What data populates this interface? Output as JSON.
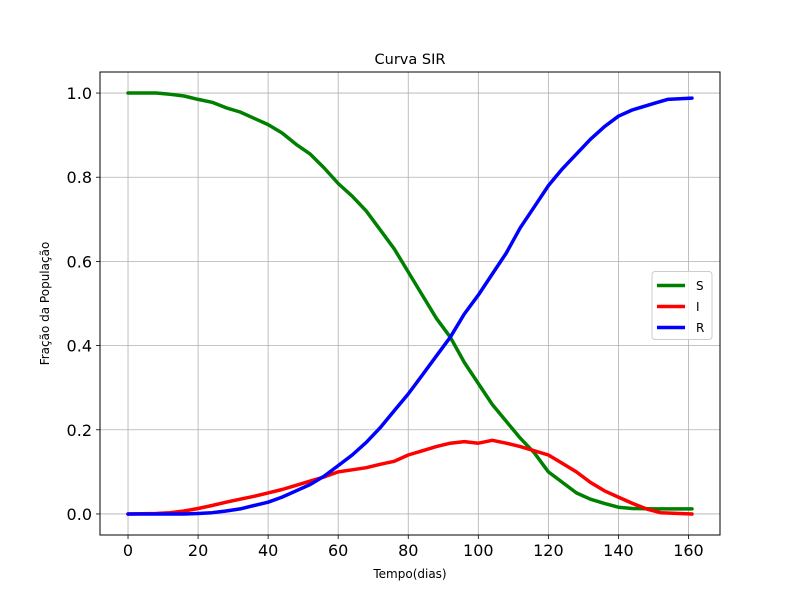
{
  "chart_data": {
    "type": "line",
    "title": "Curva SIR",
    "xlabel": "Tempo(dias)",
    "ylabel": "Fração da População",
    "xlim": [
      -8,
      169
    ],
    "ylim": [
      -0.05,
      1.05
    ],
    "xticks": [
      0,
      20,
      40,
      60,
      80,
      100,
      120,
      140,
      160
    ],
    "yticks": [
      0.0,
      0.2,
      0.4,
      0.6,
      0.8,
      1.0
    ],
    "xtick_labels": [
      "0",
      "20",
      "40",
      "60",
      "80",
      "100",
      "120",
      "140",
      "160"
    ],
    "ytick_labels": [
      "0.0",
      "0.2",
      "0.4",
      "0.6",
      "0.8",
      "1.0"
    ],
    "grid": true,
    "legend_position": "center-right",
    "series": [
      {
        "name": "S",
        "color": "#008000",
        "x": [
          0,
          8,
          12,
          16,
          20,
          24,
          28,
          32,
          36,
          40,
          44,
          48,
          52,
          56,
          60,
          64,
          68,
          72,
          76,
          80,
          84,
          88,
          92,
          96,
          100,
          104,
          108,
          112,
          116,
          120,
          124,
          128,
          132,
          136,
          140,
          144,
          150,
          161
        ],
        "values": [
          1.0,
          1.0,
          0.997,
          0.993,
          0.985,
          0.978,
          0.965,
          0.955,
          0.94,
          0.925,
          0.905,
          0.878,
          0.855,
          0.822,
          0.785,
          0.755,
          0.72,
          0.675,
          0.63,
          0.575,
          0.52,
          0.465,
          0.42,
          0.36,
          0.31,
          0.26,
          0.22,
          0.18,
          0.145,
          0.1,
          0.075,
          0.05,
          0.035,
          0.025,
          0.016,
          0.013,
          0.012,
          0.012
        ]
      },
      {
        "name": "I",
        "color": "#ff0000",
        "x": [
          0,
          8,
          12,
          16,
          20,
          24,
          28,
          32,
          36,
          40,
          44,
          48,
          52,
          56,
          60,
          64,
          68,
          72,
          76,
          80,
          84,
          88,
          92,
          96,
          100,
          104,
          108,
          112,
          116,
          120,
          124,
          128,
          132,
          136,
          140,
          144,
          148,
          152,
          161
        ],
        "values": [
          0.0,
          0.001,
          0.003,
          0.007,
          0.013,
          0.02,
          0.028,
          0.035,
          0.042,
          0.05,
          0.058,
          0.068,
          0.078,
          0.088,
          0.1,
          0.105,
          0.11,
          0.118,
          0.125,
          0.14,
          0.15,
          0.16,
          0.168,
          0.172,
          0.168,
          0.175,
          0.168,
          0.16,
          0.15,
          0.14,
          0.12,
          0.1,
          0.075,
          0.055,
          0.04,
          0.025,
          0.012,
          0.003,
          0.0
        ]
      },
      {
        "name": "R",
        "color": "#0000ff",
        "x": [
          0,
          8,
          12,
          16,
          20,
          24,
          28,
          32,
          36,
          40,
          44,
          48,
          52,
          56,
          60,
          64,
          68,
          72,
          76,
          80,
          84,
          88,
          92,
          96,
          100,
          104,
          108,
          112,
          116,
          120,
          124,
          128,
          132,
          136,
          140,
          144,
          150,
          154,
          161
        ],
        "values": [
          0.0,
          0.0,
          0.0,
          0.0,
          0.001,
          0.003,
          0.007,
          0.012,
          0.02,
          0.028,
          0.04,
          0.055,
          0.07,
          0.09,
          0.115,
          0.14,
          0.17,
          0.205,
          0.245,
          0.285,
          0.33,
          0.375,
          0.42,
          0.475,
          0.52,
          0.57,
          0.62,
          0.68,
          0.73,
          0.78,
          0.82,
          0.855,
          0.89,
          0.92,
          0.945,
          0.96,
          0.975,
          0.985,
          0.988
        ]
      }
    ]
  }
}
